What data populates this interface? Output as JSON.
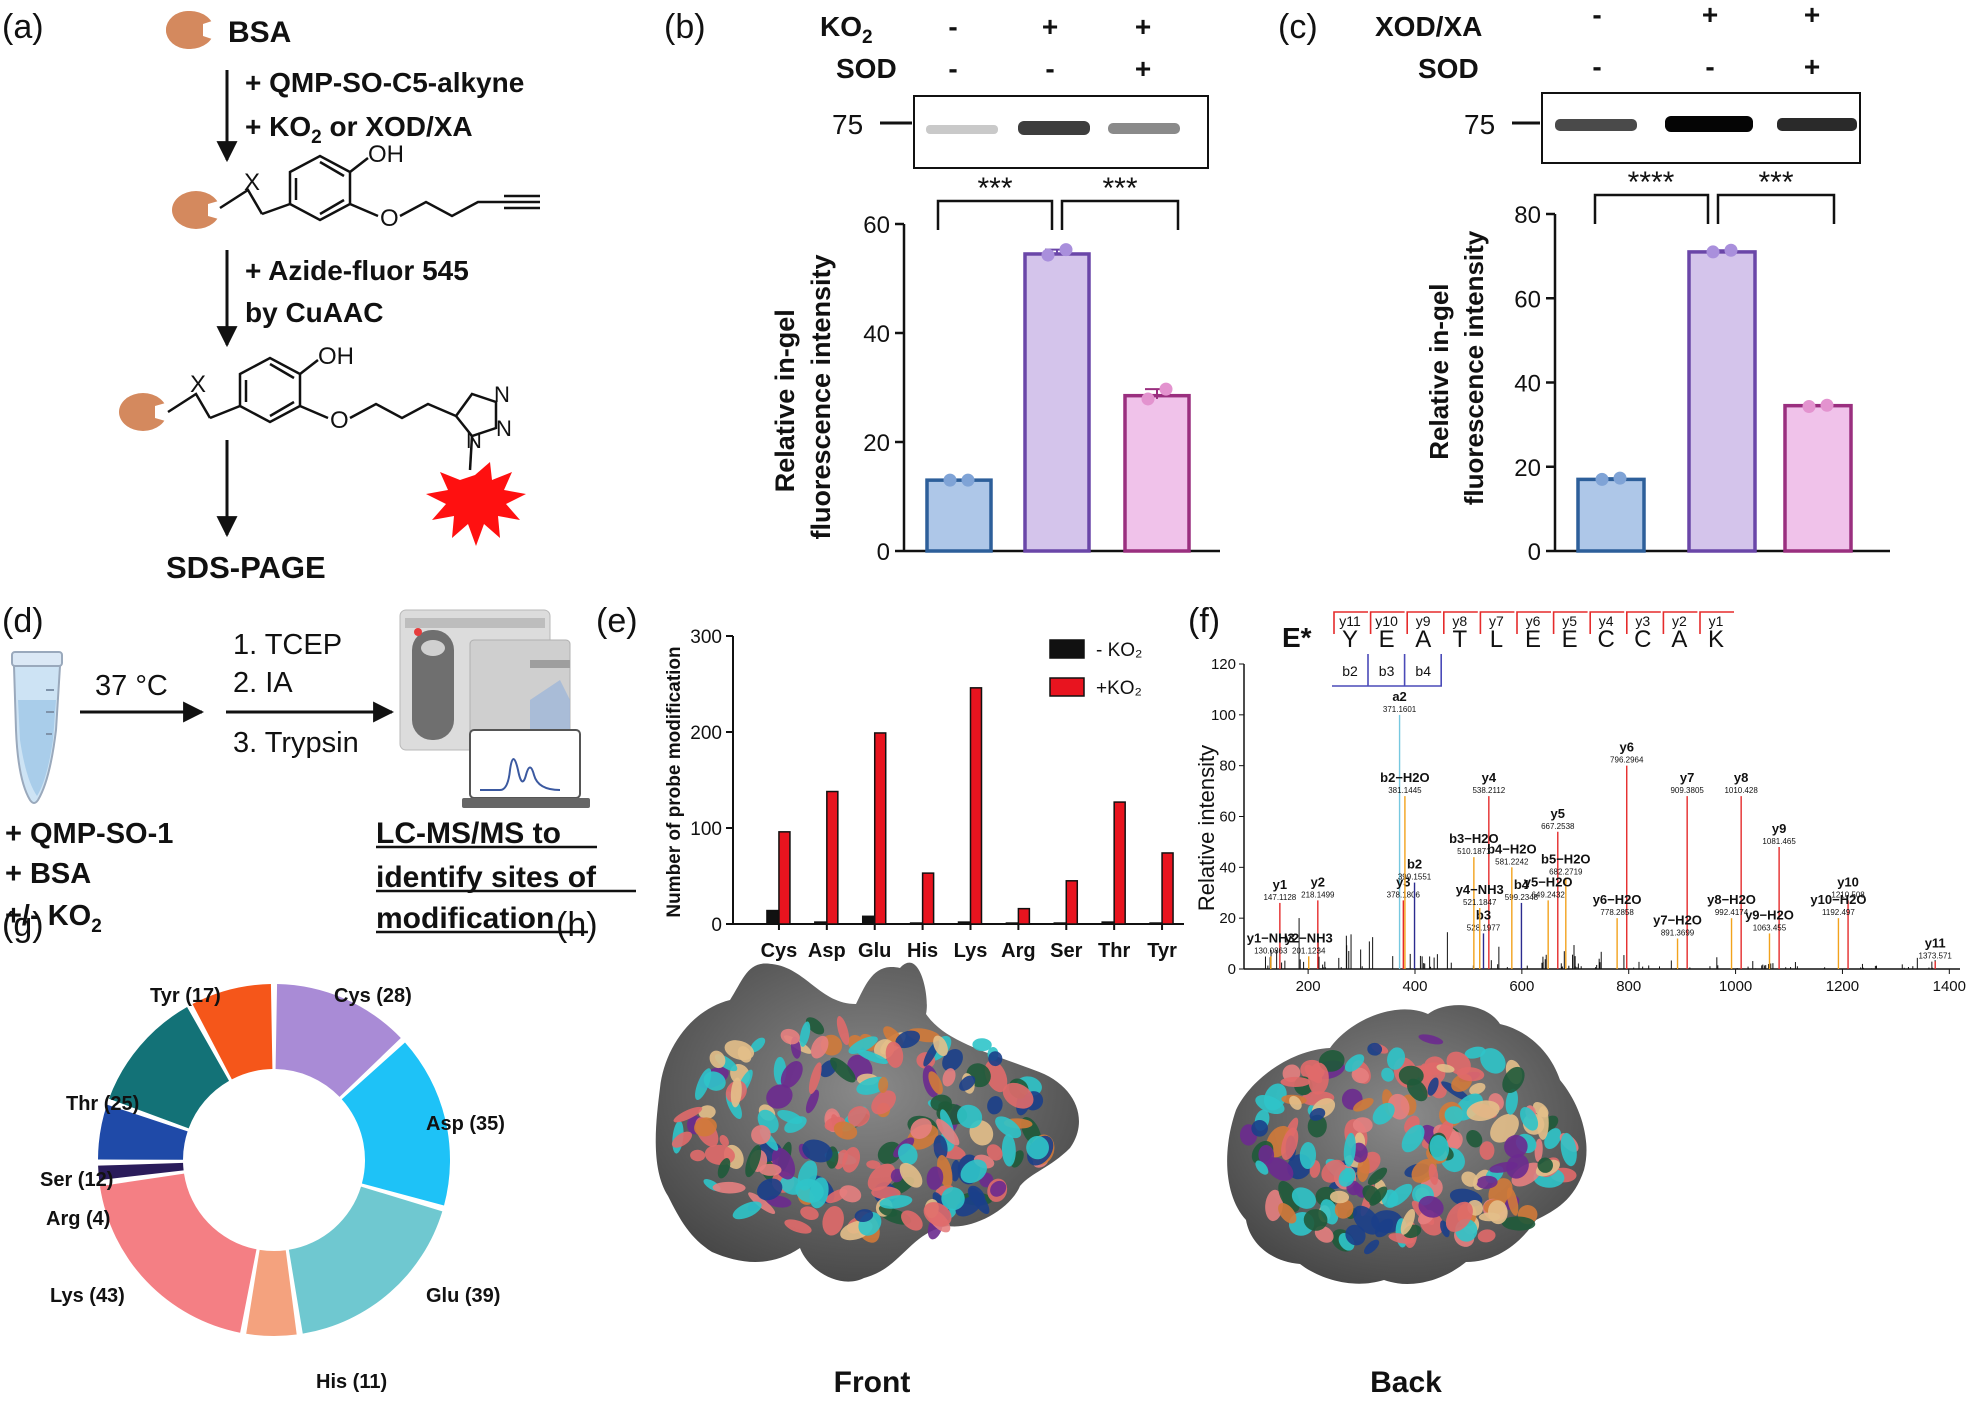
{
  "panels": {
    "a": "(a)",
    "b": "(b)",
    "c": "(c)",
    "d": "(d)",
    "e": "(e)",
    "f": "(f)",
    "g": "(g)",
    "h": "(h)"
  },
  "a": {
    "bsa": "BSA",
    "reagent1": "+ QMP-SO-C5-alkyne",
    "reagent2_pre": "+ KO",
    "reagent2_sub": "2",
    "reagent2_post": " or XOD/XA",
    "click1": "+ Azide-fluor 545",
    "click2": "by CuAAC",
    "oh": "OH",
    "x": "X",
    "o": "O",
    "n": "N",
    "sdspage": "SDS-PAGE"
  },
  "b": {
    "row1_label": "KO",
    "row1_sub": "2",
    "row1": [
      "-",
      "+",
      "+"
    ],
    "row2_label": "SOD",
    "row2": [
      "-",
      "-",
      "+"
    ],
    "mw": "75",
    "sig1": "***",
    "sig2": "***"
  },
  "c": {
    "row1_label": "XOD/XA",
    "row1": [
      "-",
      "+",
      "+"
    ],
    "row2_label": "SOD",
    "row2": [
      "-",
      "-",
      "+"
    ],
    "mw": "75",
    "sig1": "****",
    "sig2": "***"
  },
  "d": {
    "temp": "37 °C",
    "steps": [
      "1. TCEP",
      "2. IA",
      "3. Trypsin"
    ],
    "reagents": [
      "+ QMP-SO-1",
      "+ BSA",
      "+/- KO"
    ],
    "reagent_sub": "2",
    "lcms": [
      "LC-MS/MS to",
      "identify sites of",
      "modification"
    ]
  },
  "f": {
    "prefix": "E*",
    "sequence": [
      "Y",
      "E",
      "A",
      "T",
      "L",
      "E",
      "E",
      "C",
      "C",
      "A",
      "K"
    ],
    "y_ions": [
      "y11",
      "y10",
      "y9",
      "y8",
      "y7",
      "y6",
      "y5",
      "y4",
      "y3",
      "y2",
      "y1"
    ],
    "b_ions": [
      "b2",
      "b3",
      "b4"
    ]
  },
  "h": {
    "front": "Front",
    "back": "Back"
  },
  "chart_data": [
    {
      "id": "b",
      "type": "bar",
      "ylabel": "Relative in-gel fluorescence intensity",
      "ylim": [
        0,
        60
      ],
      "yticks": [
        0,
        20,
        40,
        60
      ],
      "values": [
        13,
        54.5,
        28.5
      ],
      "points": [
        [
          13,
          13
        ],
        [
          54.3,
          55.3
        ],
        [
          27.9,
          29.7
        ]
      ],
      "colors": [
        "#aec7e8",
        "#d4c4eb",
        "#f0c2ea"
      ],
      "edges": [
        "#2d5f9a",
        "#6a46a8",
        "#9a2f7f"
      ],
      "dots": [
        "#7fa3d6",
        "#a98fdc",
        "#e393cf"
      ]
    },
    {
      "id": "c",
      "type": "bar",
      "ylabel": "Relative in-gel fluorescence intensity",
      "ylim": [
        0,
        80
      ],
      "yticks": [
        0,
        20,
        40,
        60,
        80
      ],
      "values": [
        17,
        71,
        34.5
      ],
      "points": [
        [
          17,
          17.3
        ],
        [
          71,
          71.4
        ],
        [
          34.3,
          34.6
        ]
      ],
      "colors": [
        "#aec7e8",
        "#d4c4eb",
        "#f0c2ea"
      ],
      "edges": [
        "#2d5f9a",
        "#6a46a8",
        "#9a2f7f"
      ],
      "dots": [
        "#7fa3d6",
        "#a98fdc",
        "#e393cf"
      ]
    },
    {
      "id": "e",
      "type": "bar",
      "ylabel": "Number of probe modification",
      "categories": [
        "Cys",
        "Asp",
        "Glu",
        "His",
        "Lys",
        "Arg",
        "Ser",
        "Thr",
        "Tyr"
      ],
      "ylim": [
        0,
        300
      ],
      "yticks": [
        0,
        100,
        200,
        300
      ],
      "series": [
        {
          "name": "- KO₂",
          "color": "#111111",
          "values": [
            14,
            2,
            8,
            1,
            2,
            1,
            1,
            2,
            1
          ]
        },
        {
          "name": "+KO₂",
          "color": "#e8141f",
          "values": [
            96,
            138,
            199,
            53,
            246,
            16,
            45,
            127,
            74
          ]
        }
      ],
      "legend": "top-right"
    },
    {
      "id": "f",
      "type": "bar",
      "ylabel": "Relative intensity",
      "xlim": [
        80,
        1420
      ],
      "ylim": [
        0,
        120
      ],
      "xticks": [
        200,
        400,
        600,
        800,
        1000,
        1200,
        1400
      ],
      "yticks": [
        0,
        20,
        40,
        60,
        80,
        100,
        120
      ],
      "annotated_peaks": [
        {
          "label": "a2",
          "mz": 371.1601,
          "mz_text": "371.1601",
          "intensity": 100,
          "color": "#76c8e0"
        },
        {
          "label": "y1",
          "mz": 147.1128,
          "mz_text": "147.1128",
          "intensity": 26,
          "color": "#e52b2b"
        },
        {
          "label": "y2",
          "mz": 218.1499,
          "mz_text": "218.1499",
          "intensity": 27,
          "color": "#e52b2b"
        },
        {
          "label": "y3",
          "mz": 378.1806,
          "mz_text": "378.1806",
          "intensity": 27,
          "color": "#e52b2b"
        },
        {
          "label": "y4",
          "mz": 538.2112,
          "mz_text": "538.2112",
          "intensity": 68,
          "color": "#e52b2b"
        },
        {
          "label": "y5",
          "mz": 667.2538,
          "mz_text": "667.2538",
          "intensity": 54,
          "color": "#e52b2b"
        },
        {
          "label": "y6",
          "mz": 796.2964,
          "mz_text": "796.2964",
          "intensity": 80,
          "color": "#e52b2b"
        },
        {
          "label": "y7",
          "mz": 909.3805,
          "mz_text": "909.3805",
          "intensity": 68,
          "color": "#e52b2b"
        },
        {
          "label": "y8",
          "mz": 1010.428,
          "mz_text": "1010.428",
          "intensity": 68,
          "color": "#e52b2b"
        },
        {
          "label": "y9",
          "mz": 1081.465,
          "mz_text": "1081.465",
          "intensity": 48,
          "color": "#e52b2b"
        },
        {
          "label": "y10",
          "mz": 1210.508,
          "mz_text": "1210.508",
          "intensity": 27,
          "color": "#e52b2b"
        },
        {
          "label": "y11",
          "mz": 1373.571,
          "mz_text": "1373.571",
          "intensity": 3,
          "color": "#e52b2b"
        },
        {
          "label": "b2",
          "mz": 399.1551,
          "mz_text": "399.1551",
          "intensity": 34,
          "color": "#2b2b8f"
        },
        {
          "label": "b3",
          "mz": 528.1977,
          "mz_text": "528.1977",
          "intensity": 14,
          "color": "#2b2b8f"
        },
        {
          "label": "b4",
          "mz": 599.2348,
          "mz_text": "599.2348",
          "intensity": 26,
          "color": "#2b2b8f"
        },
        {
          "label": "b2−H2O",
          "mz": 381.1445,
          "mz_text": "381.1445",
          "intensity": 68,
          "color": "#f2a21c"
        },
        {
          "label": "b3−H2O",
          "mz": 510.1871,
          "mz_text": "510.1871",
          "intensity": 44,
          "color": "#f2a21c"
        },
        {
          "label": "b4−H2O",
          "mz": 581.2242,
          "mz_text": "581.2242",
          "intensity": 40,
          "color": "#f2a21c"
        },
        {
          "label": "b5−H2O",
          "mz": 682.2719,
          "mz_text": "682.2719",
          "intensity": 36,
          "color": "#f2a21c"
        },
        {
          "label": "y4−NH3",
          "mz": 521.1847,
          "mz_text": "521.1847",
          "intensity": 24,
          "color": "#f2a21c"
        },
        {
          "label": "y5−H2O",
          "mz": 649.2432,
          "mz_text": "649.2432",
          "intensity": 27,
          "color": "#f2a21c"
        },
        {
          "label": "y6−H2O",
          "mz": 778.2858,
          "mz_text": "778.2858",
          "intensity": 20,
          "color": "#f2a21c"
        },
        {
          "label": "y7−H2O",
          "mz": 891.3699,
          "mz_text": "891.3699",
          "intensity": 12,
          "color": "#f2a21c"
        },
        {
          "label": "y8−H2O",
          "mz": 992.4174,
          "mz_text": "992.4174",
          "intensity": 20,
          "color": "#f2a21c"
        },
        {
          "label": "y9−H2O",
          "mz": 1063.455,
          "mz_text": "1063.455",
          "intensity": 14,
          "color": "#f2a21c"
        },
        {
          "label": "y10−H2O",
          "mz": 1192.497,
          "mz_text": "1192.497",
          "intensity": 20,
          "color": "#f2a21c"
        },
        {
          "label": "y1−NH3",
          "mz": 130.0863,
          "mz_text": "130.0863",
          "intensity": 5,
          "color": "#f2a21c"
        },
        {
          "label": "y2−NH3",
          "mz": 201.1234,
          "mz_text": "201.1234",
          "intensity": 5,
          "color": "#f2a21c"
        }
      ]
    },
    {
      "id": "g",
      "type": "pie",
      "categories": [
        "Cys (28)",
        "Asp (35)",
        "Glu (39)",
        "His (11)",
        "Lys (43)",
        "Arg (4)",
        "Ser (12)",
        "Thr (25)",
        "Tyr (17)"
      ],
      "values": [
        28,
        35,
        39,
        11,
        43,
        4,
        12,
        25,
        17
      ],
      "colors": [
        "#a98bd6",
        "#1ec2f7",
        "#6fc8d0",
        "#f4a27e",
        "#f47f84",
        "#2a1c5b",
        "#1f4aa8",
        "#137277",
        "#f5561a"
      ]
    }
  ]
}
